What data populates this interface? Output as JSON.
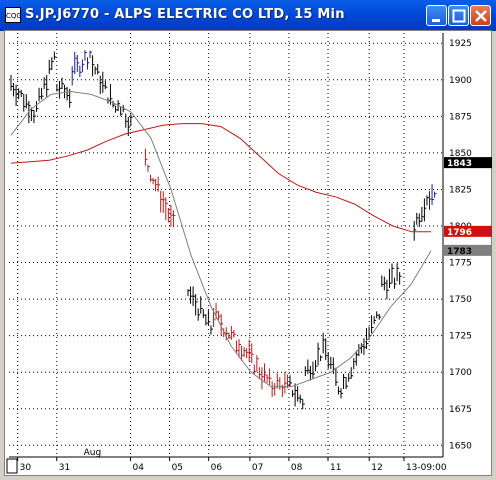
{
  "window": {
    "title": "S.JP.J6770 - ALPS ELECTRIC CO LTD, 15 Min",
    "icon": "chart-app-icon",
    "buttons": [
      "minimize-icon",
      "maximize-icon",
      "close-icon"
    ]
  },
  "chart_data": {
    "type": "line",
    "xlabel": "",
    "ylabel": "",
    "ylim": [
      1642,
      1932
    ],
    "grid": true,
    "price_ticks": [
      "1925",
      "1900",
      "1875",
      "1850",
      "1825",
      "1800",
      "1775",
      "1750",
      "1725",
      "1700",
      "1675",
      "1650"
    ],
    "price_tick_values": [
      1925,
      1900,
      1875,
      1850,
      1825,
      1800,
      1775,
      1750,
      1725,
      1700,
      1675,
      1650
    ],
    "date_ticks": [
      "30",
      "31",
      "04",
      "05",
      "06",
      "07",
      "08",
      "11",
      "12",
      "13-09:00"
    ],
    "month_label": "Aug",
    "price_tags": [
      {
        "label": "1843",
        "value": 1843,
        "bg": "#000000",
        "fg": "#ffffff"
      },
      {
        "label": "1796",
        "value": 1796,
        "bg": "#d01010",
        "fg": "#ffffff"
      },
      {
        "label": "1783",
        "value": 1783,
        "bg": "#808080",
        "fg": "#000000"
      }
    ],
    "colors": {
      "bars_up": "#1a1aa8",
      "bars_down": "#c01818",
      "bars_neutral": "#000000",
      "ma_long": "#c01818",
      "ma_short": "#808080",
      "grid": "#000000"
    },
    "series": [
      {
        "values": [
          1843,
          1844,
          1845,
          1848,
          1852,
          1858,
          1863,
          1866,
          1869,
          1870,
          1870,
          1868,
          1860,
          1848,
          1836,
          1828,
          1823,
          1820,
          1815,
          1807,
          1800,
          1796,
          1796
        ]
      },
      {
        "values": [
          1862,
          1880,
          1890,
          1892,
          1890,
          1885,
          1878,
          1860,
          1825,
          1780,
          1745,
          1718,
          1700,
          1690,
          1690,
          1695,
          1700,
          1710,
          1725,
          1745,
          1760,
          1783
        ]
      }
    ]
  }
}
